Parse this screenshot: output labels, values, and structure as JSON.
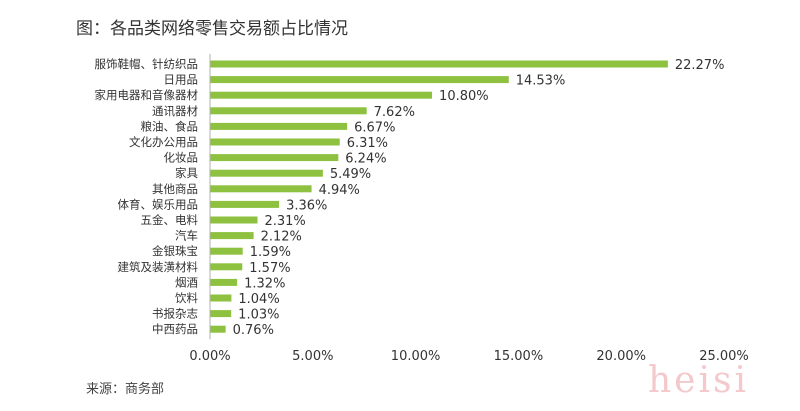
{
  "title": "图：各品类网络零售交易额占比情况",
  "source": "来源：商务部",
  "watermark": "heisi",
  "colors": {
    "bar": "#8dc13f",
    "axis": "#b0b0b0",
    "text": "#333333"
  },
  "chart_data": {
    "type": "bar",
    "orientation": "horizontal",
    "title": "图：各品类网络零售交易额占比情况",
    "categories": [
      "服饰鞋帽、针纺织品",
      "日用品",
      "家用电器和音像器材",
      "通讯器材",
      "粮油、食品",
      "文化办公用品",
      "化妆品",
      "家具",
      "其他商品",
      "体育、娱乐用品",
      "五金、电料",
      "汽车",
      "金银珠宝",
      "建筑及装潢材料",
      "烟酒",
      "饮料",
      "书报杂志",
      "中西药品"
    ],
    "values": [
      22.27,
      14.53,
      10.8,
      7.62,
      6.67,
      6.31,
      6.24,
      5.49,
      4.94,
      3.36,
      2.31,
      2.12,
      1.59,
      1.57,
      1.32,
      1.04,
      1.03,
      0.76
    ],
    "value_labels": [
      "22.27%",
      "14.53%",
      "10.80%",
      "7.62%",
      "6.67%",
      "6.31%",
      "6.24%",
      "5.49%",
      "4.94%",
      "3.36%",
      "2.31%",
      "2.12%",
      "1.59%",
      "1.57%",
      "1.32%",
      "1.04%",
      "1.03%",
      "0.76%"
    ],
    "xticks": [
      0,
      5,
      10,
      15,
      20,
      25
    ],
    "xtick_labels": [
      "0.00%",
      "5.00%",
      "10.00%",
      "15.00%",
      "20.00%",
      "25.00%"
    ],
    "xlim": [
      0,
      25
    ],
    "grid": false,
    "legend": "none"
  }
}
